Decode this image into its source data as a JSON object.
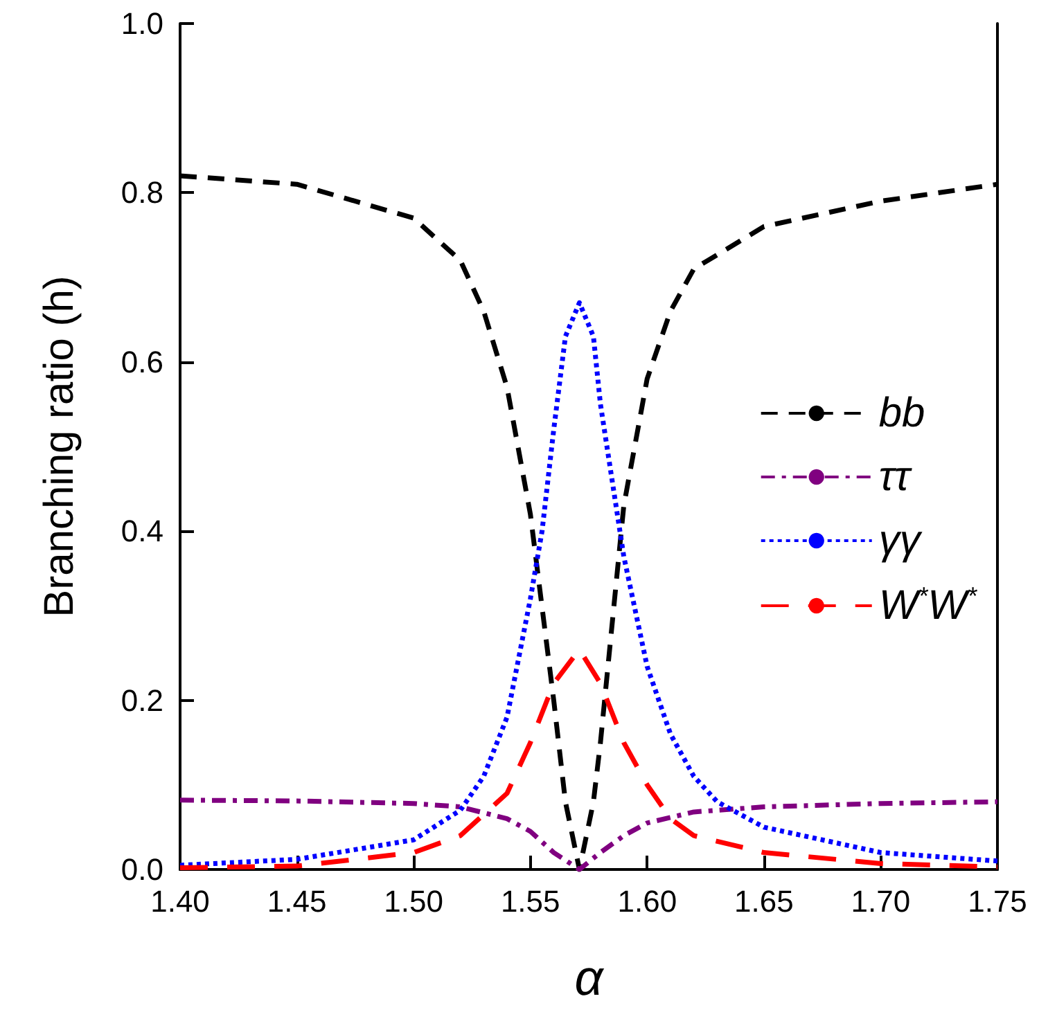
{
  "chart_data": {
    "type": "line",
    "xlabel": "α",
    "ylabel": "Branching ratio (h)",
    "xlim": [
      1.4,
      1.75
    ],
    "ylim": [
      0,
      1
    ],
    "xticks": [
      {
        "value": 1.4,
        "label": "1.40"
      },
      {
        "value": 1.45,
        "label": "1.45"
      },
      {
        "value": 1.5,
        "label": "1.50"
      },
      {
        "value": 1.55,
        "label": "1.55"
      },
      {
        "value": 1.6,
        "label": "1.60"
      },
      {
        "value": 1.65,
        "label": "1.65"
      },
      {
        "value": 1.7,
        "label": "1.70"
      },
      {
        "value": 1.75,
        "label": "1.75"
      }
    ],
    "yticks": [
      {
        "value": 0,
        "label": "0.0"
      },
      0.2,
      0.4,
      0.6,
      0.8,
      {
        "value": 1,
        "label": "1.0"
      }
    ],
    "grid": false,
    "legend": "right",
    "marker": "none",
    "series": [
      {
        "name": "bb",
        "color": "#000000",
        "line_style": "dashed",
        "x": [
          1.4,
          1.45,
          1.5,
          1.52,
          1.53,
          1.54,
          1.55,
          1.56,
          1.565,
          1.571,
          1.577,
          1.58,
          1.59,
          1.6,
          1.61,
          1.62,
          1.65,
          1.7,
          1.75
        ],
        "values": [
          0.82,
          0.81,
          0.77,
          0.72,
          0.66,
          0.57,
          0.42,
          0.2,
          0.08,
          0,
          0.08,
          0.15,
          0.43,
          0.58,
          0.66,
          0.71,
          0.76,
          0.79,
          0.81
        ]
      },
      {
        "name": "ττ",
        "color": "#800080",
        "line_style": "dashdot",
        "x": [
          1.4,
          1.45,
          1.5,
          1.52,
          1.54,
          1.55,
          1.56,
          1.571,
          1.58,
          1.59,
          1.6,
          1.62,
          1.65,
          1.7,
          1.75
        ],
        "values": [
          0.082,
          0.081,
          0.078,
          0.074,
          0.06,
          0.045,
          0.02,
          0,
          0.02,
          0.04,
          0.055,
          0.068,
          0.074,
          0.078,
          0.08
        ]
      },
      {
        "name": "γγ",
        "color": "#0000ff",
        "line_style": "dotted",
        "x": [
          1.4,
          1.45,
          1.5,
          1.52,
          1.53,
          1.54,
          1.55,
          1.555,
          1.56,
          1.565,
          1.571,
          1.577,
          1.58,
          1.59,
          1.6,
          1.61,
          1.62,
          1.63,
          1.65,
          1.7,
          1.75
        ],
        "values": [
          0.005,
          0.012,
          0.035,
          0.07,
          0.11,
          0.18,
          0.32,
          0.4,
          0.52,
          0.63,
          0.67,
          0.63,
          0.55,
          0.37,
          0.24,
          0.16,
          0.11,
          0.08,
          0.05,
          0.02,
          0.01
        ]
      },
      {
        "name": "W$^{*}$W$^{*}$",
        "color": "#ff0000",
        "line_style": "longdash",
        "x": [
          1.4,
          1.45,
          1.5,
          1.52,
          1.54,
          1.55,
          1.56,
          1.571,
          1.58,
          1.59,
          1.6,
          1.61,
          1.62,
          1.65,
          1.7,
          1.75
        ],
        "values": [
          0.002,
          0.004,
          0.02,
          0.04,
          0.09,
          0.15,
          0.22,
          0.26,
          0.22,
          0.15,
          0.1,
          0.06,
          0.04,
          0.02,
          0.007,
          0.003
        ]
      }
    ]
  }
}
